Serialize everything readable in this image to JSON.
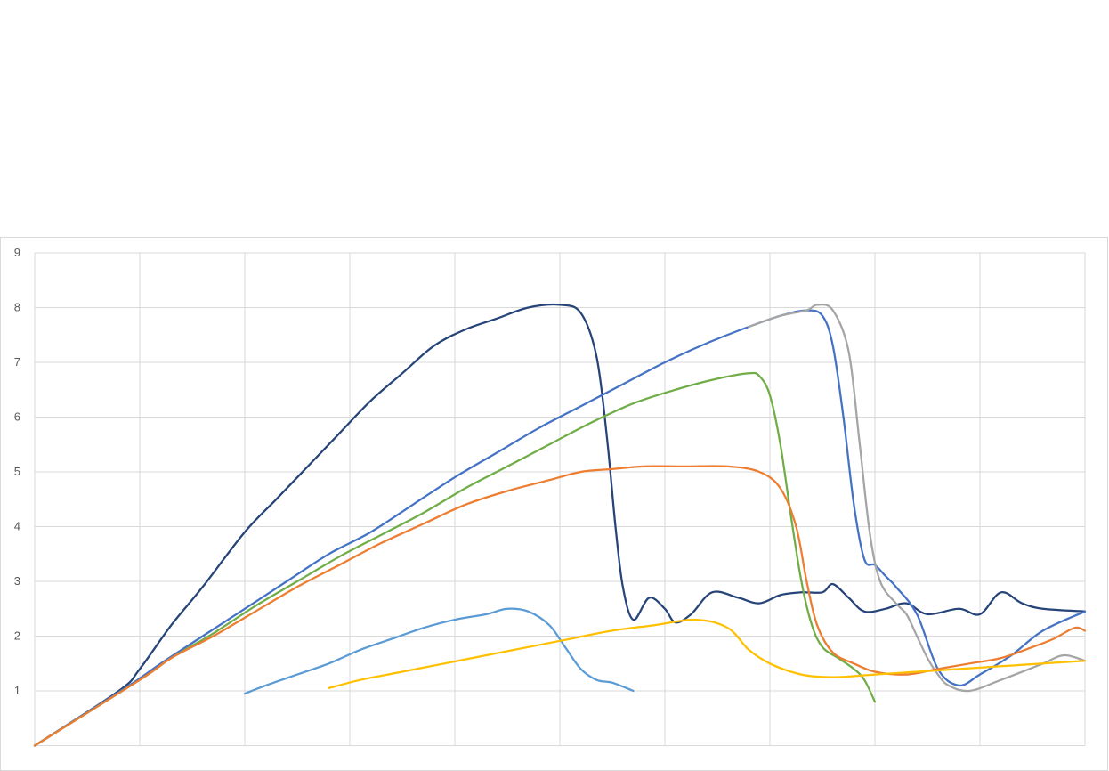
{
  "chart_data": {
    "type": "line",
    "title": "",
    "xlabel": "",
    "ylabel": "",
    "ylim": [
      0,
      9
    ],
    "xlim": [
      0,
      100
    ],
    "y_ticks": [
      "1",
      "2",
      "3",
      "4",
      "5",
      "6",
      "7",
      "8",
      "9"
    ],
    "grid": true,
    "legend": "none",
    "series": [
      {
        "color": "#264478",
        "points": [
          [
            0,
            0
          ],
          [
            8,
            1
          ],
          [
            10,
            1.4
          ],
          [
            13,
            2.2
          ],
          [
            16,
            2.9
          ],
          [
            20,
            3.9
          ],
          [
            23,
            4.5
          ],
          [
            26,
            5.1
          ],
          [
            29,
            5.7
          ],
          [
            32,
            6.3
          ],
          [
            35,
            6.8
          ],
          [
            38,
            7.3
          ],
          [
            41,
            7.6
          ],
          [
            44,
            7.8
          ],
          [
            47,
            8.0
          ],
          [
            50,
            8.05
          ],
          [
            52,
            7.9
          ],
          [
            53.5,
            7.1
          ],
          [
            54.5,
            5.6
          ],
          [
            55.3,
            4.0
          ],
          [
            56,
            2.9
          ],
          [
            57,
            2.3
          ],
          [
            58.5,
            2.7
          ],
          [
            60,
            2.5
          ],
          [
            61,
            2.25
          ],
          [
            62.5,
            2.4
          ],
          [
            64.5,
            2.8
          ],
          [
            67,
            2.7
          ],
          [
            69,
            2.6
          ],
          [
            71,
            2.75
          ],
          [
            73,
            2.8
          ],
          [
            75,
            2.8
          ],
          [
            76,
            2.95
          ],
          [
            77.5,
            2.7
          ],
          [
            79,
            2.45
          ],
          [
            81,
            2.5
          ],
          [
            83,
            2.6
          ],
          [
            85,
            2.4
          ],
          [
            88,
            2.5
          ],
          [
            90,
            2.4
          ],
          [
            92,
            2.8
          ],
          [
            94,
            2.6
          ],
          [
            96,
            2.5
          ],
          [
            100,
            2.45
          ]
        ]
      },
      {
        "color": "#4472c4",
        "points": [
          [
            0,
            0
          ],
          [
            9,
            1.1
          ],
          [
            12,
            1.5
          ],
          [
            16,
            2.0
          ],
          [
            20,
            2.5
          ],
          [
            24,
            3.0
          ],
          [
            28,
            3.5
          ],
          [
            32,
            3.9
          ],
          [
            36,
            4.4
          ],
          [
            40,
            4.9
          ],
          [
            44,
            5.35
          ],
          [
            48,
            5.8
          ],
          [
            52,
            6.2
          ],
          [
            56,
            6.6
          ],
          [
            60,
            7.0
          ],
          [
            64,
            7.35
          ],
          [
            68,
            7.65
          ],
          [
            71,
            7.85
          ],
          [
            73.5,
            7.95
          ],
          [
            75,
            7.85
          ],
          [
            76,
            7.3
          ],
          [
            77,
            6.0
          ],
          [
            78,
            4.4
          ],
          [
            79,
            3.4
          ],
          [
            80,
            3.3
          ],
          [
            81,
            3.1
          ],
          [
            82,
            2.9
          ],
          [
            84,
            2.4
          ],
          [
            86,
            1.4
          ],
          [
            88,
            1.1
          ],
          [
            90,
            1.3
          ],
          [
            93,
            1.65
          ],
          [
            96,
            2.1
          ],
          [
            100,
            2.45
          ]
        ]
      },
      {
        "color": "#a5a5a5",
        "points": [
          [
            68,
            7.65
          ],
          [
            71,
            7.85
          ],
          [
            73.5,
            7.95
          ],
          [
            74.5,
            8.05
          ],
          [
            76,
            7.95
          ],
          [
            77.5,
            7.2
          ],
          [
            78.5,
            5.6
          ],
          [
            79.5,
            3.9
          ],
          [
            80.5,
            3.0
          ],
          [
            82,
            2.6
          ],
          [
            83,
            2.4
          ],
          [
            84,
            2.0
          ],
          [
            85,
            1.6
          ],
          [
            86,
            1.3
          ],
          [
            87,
            1.1
          ],
          [
            89,
            1.0
          ],
          [
            92,
            1.2
          ],
          [
            96,
            1.5
          ],
          [
            98,
            1.65
          ],
          [
            100,
            1.55
          ]
        ]
      },
      {
        "color": "#70ad47",
        "points": [
          [
            0,
            0
          ],
          [
            10,
            1.2
          ],
          [
            13,
            1.6
          ],
          [
            17,
            2.05
          ],
          [
            21,
            2.55
          ],
          [
            25,
            3.0
          ],
          [
            29,
            3.45
          ],
          [
            33,
            3.85
          ],
          [
            37,
            4.25
          ],
          [
            41,
            4.7
          ],
          [
            45,
            5.1
          ],
          [
            49,
            5.5
          ],
          [
            53,
            5.9
          ],
          [
            57,
            6.25
          ],
          [
            61,
            6.5
          ],
          [
            65,
            6.7
          ],
          [
            68,
            6.8
          ],
          [
            69,
            6.75
          ],
          [
            70,
            6.4
          ],
          [
            71,
            5.5
          ],
          [
            72,
            4.2
          ],
          [
            73,
            3.0
          ],
          [
            74,
            2.2
          ],
          [
            75,
            1.8
          ],
          [
            76.5,
            1.6
          ],
          [
            78,
            1.4
          ],
          [
            79,
            1.2
          ],
          [
            80,
            0.8
          ]
        ]
      },
      {
        "color": "#ed7d31",
        "points": [
          [
            0,
            0
          ],
          [
            10,
            1.2
          ],
          [
            13,
            1.6
          ],
          [
            17,
            2.0
          ],
          [
            21,
            2.45
          ],
          [
            25,
            2.9
          ],
          [
            29,
            3.3
          ],
          [
            33,
            3.7
          ],
          [
            37,
            4.05
          ],
          [
            41,
            4.4
          ],
          [
            45,
            4.65
          ],
          [
            49,
            4.85
          ],
          [
            52,
            5.0
          ],
          [
            55,
            5.05
          ],
          [
            58,
            5.1
          ],
          [
            62,
            5.1
          ],
          [
            66,
            5.1
          ],
          [
            69,
            5.0
          ],
          [
            71,
            4.7
          ],
          [
            72.5,
            4.0
          ],
          [
            73.5,
            3.0
          ],
          [
            74.5,
            2.2
          ],
          [
            76,
            1.7
          ],
          [
            78,
            1.5
          ],
          [
            80,
            1.35
          ],
          [
            83,
            1.3
          ],
          [
            86,
            1.4
          ],
          [
            89,
            1.5
          ],
          [
            92,
            1.6
          ],
          [
            95,
            1.8
          ],
          [
            97,
            1.95
          ],
          [
            99,
            2.15
          ],
          [
            100,
            2.1
          ]
        ]
      },
      {
        "color": "#5b9bd5",
        "points": [
          [
            20,
            0.95
          ],
          [
            22,
            1.1
          ],
          [
            25,
            1.3
          ],
          [
            28,
            1.5
          ],
          [
            31,
            1.75
          ],
          [
            34,
            1.95
          ],
          [
            37,
            2.15
          ],
          [
            40,
            2.3
          ],
          [
            43,
            2.4
          ],
          [
            45,
            2.5
          ],
          [
            47,
            2.45
          ],
          [
            49,
            2.2
          ],
          [
            50.5,
            1.8
          ],
          [
            52,
            1.4
          ],
          [
            53.5,
            1.2
          ],
          [
            55,
            1.15
          ],
          [
            57,
            1.0
          ]
        ]
      },
      {
        "color": "#ffc000",
        "points": [
          [
            28,
            1.05
          ],
          [
            31,
            1.2
          ],
          [
            35,
            1.35
          ],
          [
            39,
            1.5
          ],
          [
            43,
            1.65
          ],
          [
            47,
            1.8
          ],
          [
            51,
            1.95
          ],
          [
            55,
            2.1
          ],
          [
            59,
            2.2
          ],
          [
            63,
            2.3
          ],
          [
            66,
            2.15
          ],
          [
            68,
            1.75
          ],
          [
            70,
            1.5
          ],
          [
            73,
            1.3
          ],
          [
            76,
            1.25
          ],
          [
            80,
            1.3
          ],
          [
            84,
            1.35
          ],
          [
            88,
            1.4
          ],
          [
            92,
            1.45
          ],
          [
            96,
            1.5
          ],
          [
            100,
            1.55
          ]
        ]
      }
    ]
  }
}
